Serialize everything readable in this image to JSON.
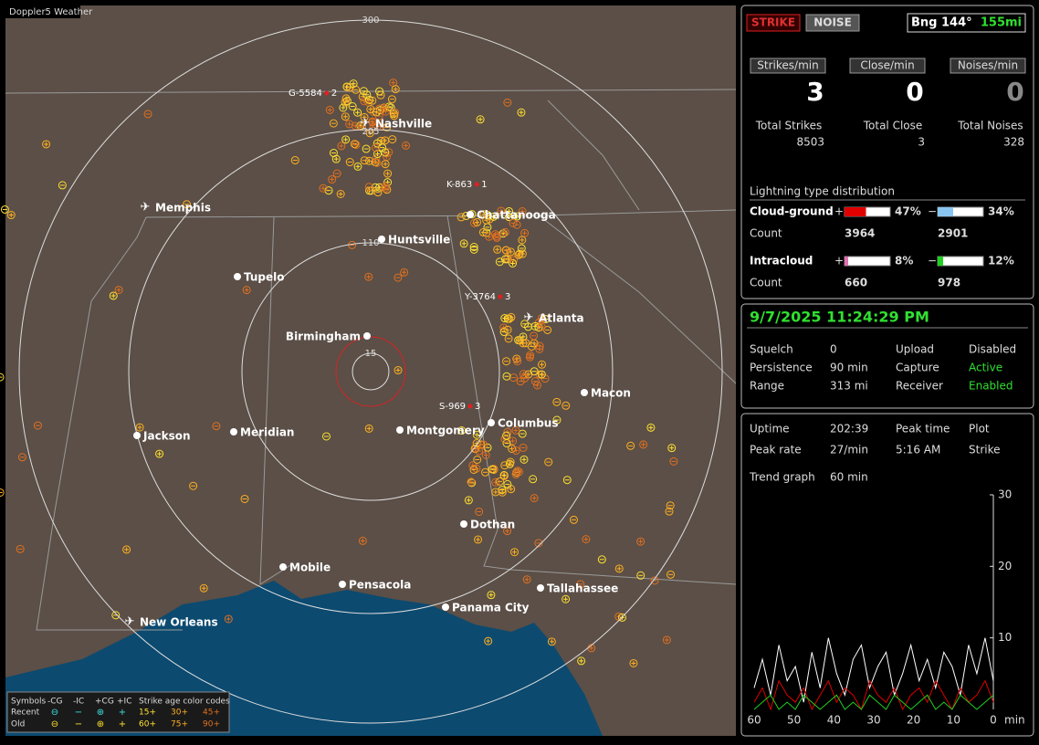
{
  "app_title": "Doppler5 Weather",
  "map": {
    "rings": [
      "300",
      "205",
      "110",
      "15"
    ],
    "cities": [
      "Nashville",
      "Memphis",
      "Chattanooga",
      "Huntsville",
      "Tupelo",
      "Atlanta",
      "Birmingham",
      "Macon",
      "Columbus",
      "Jackson",
      "Meridian",
      "Montgomery",
      "Dothan",
      "Mobile",
      "Pensacola",
      "Tallahassee",
      "Panama City",
      "New Orleans"
    ],
    "stations": [
      {
        "id": "G-5584",
        "count": 2
      },
      {
        "id": "K-863",
        "count": 1
      },
      {
        "id": "Y-3764",
        "count": 3
      },
      {
        "id": "S-969",
        "count": 3
      }
    ],
    "legend": {
      "header": [
        "Symbols",
        "-CG",
        "-IC",
        "+CG",
        "+IC",
        "Strike age color codes"
      ],
      "rows": [
        {
          "label": "Recent",
          "ages": [
            "15+",
            "30+",
            "45+"
          ]
        },
        {
          "label": "Old",
          "ages": [
            "60+",
            "75+",
            "90+"
          ]
        }
      ]
    }
  },
  "panel": {
    "buttons": [
      "STRIKE",
      "NOISE"
    ],
    "bearing": "Bng 144°",
    "distance": "155mi",
    "rates": [
      {
        "label": "Strikes/min",
        "value": 3
      },
      {
        "label": "Close/min",
        "value": 0
      },
      {
        "label": "Noises/min",
        "value": 0
      }
    ],
    "totals": [
      {
        "label": "Total Strikes",
        "value": 8503
      },
      {
        "label": "Total Close",
        "value": 3
      },
      {
        "label": "Total Noises",
        "value": 328
      }
    ],
    "distribution": {
      "title": "Lightning type distribution",
      "count_label": "Count",
      "types": [
        {
          "name": "Cloud-ground",
          "positive": {
            "sign": "+",
            "pct": {
              "value": 47,
              "label": "47%"
            },
            "count": 3964,
            "color": "#e00000"
          },
          "negative": {
            "sign": "−",
            "pct": {
              "value": 34,
              "label": "34%"
            },
            "count": 2901,
            "color": "#8ac4f0"
          }
        },
        {
          "name": "Intracloud",
          "positive": {
            "sign": "+",
            "pct": {
              "value": 8,
              "label": "8%"
            },
            "count": 660,
            "color": "#e070b0"
          },
          "negative": {
            "sign": "−",
            "pct": {
              "value": 12,
              "label": "12%"
            },
            "count": 978,
            "color": "#20d020"
          }
        }
      ]
    }
  },
  "status": {
    "datetime": "9/7/2025 11:24:29 PM",
    "rows": [
      [
        "Squelch",
        "0",
        "Upload",
        "Disabled"
      ],
      [
        "Persistence",
        "90 min",
        "Capture",
        "Active"
      ],
      [
        "Range",
        "313 mi",
        "Receiver",
        "Enabled"
      ]
    ]
  },
  "stats": {
    "rows": [
      [
        "Uptime",
        "202:39",
        "Peak time",
        "Plot"
      ],
      [
        "Peak rate",
        "27/min",
        "5:16 AM",
        "Strike"
      ],
      [
        "Trend graph",
        "60 min"
      ]
    ]
  },
  "chart_data": {
    "type": "line",
    "xlim": [
      60,
      0
    ],
    "ylim": [
      0,
      30
    ],
    "xticks": [
      60,
      50,
      40,
      30,
      20,
      10,
      0
    ],
    "yticks": [
      10,
      20,
      30
    ],
    "xlabel": "min",
    "series": [
      {
        "color": "#ffffff",
        "values": [
          3,
          7,
          2,
          9,
          4,
          6,
          1,
          8,
          3,
          10,
          5,
          2,
          7,
          9,
          3,
          6,
          8,
          2,
          5,
          9,
          4,
          7,
          3,
          8,
          6,
          2,
          9,
          5,
          10,
          4
        ]
      },
      {
        "color": "#e00000",
        "values": [
          1,
          3,
          0,
          4,
          2,
          1,
          3,
          0,
          2,
          4,
          1,
          3,
          2,
          0,
          4,
          2,
          1,
          3,
          0,
          2,
          3,
          1,
          4,
          2,
          0,
          3,
          1,
          2,
          4,
          1
        ]
      },
      {
        "color": "#20d020",
        "values": [
          0,
          1,
          2,
          0,
          1,
          0,
          2,
          1,
          0,
          1,
          2,
          0,
          1,
          0,
          2,
          1,
          0,
          2,
          1,
          0,
          1,
          2,
          0,
          1,
          0,
          2,
          1,
          0,
          1,
          2
        ]
      }
    ]
  }
}
